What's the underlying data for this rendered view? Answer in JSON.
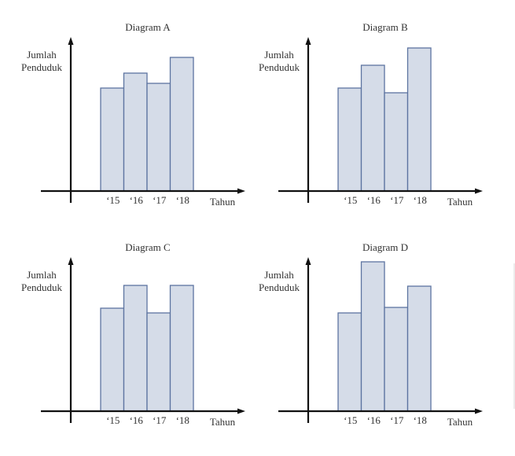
{
  "figure": {
    "description": "Four bar diagrams of population per year"
  },
  "chart_data": [
    {
      "type": "bar",
      "title": "Diagram A",
      "ylabel": [
        "Jumlah",
        "Penduduk"
      ],
      "xlabel": "Tahun",
      "categories": [
        "‘15",
        "‘16",
        "‘17",
        "‘18"
      ],
      "values": [
        131,
        150,
        137,
        170
      ],
      "units": "relative height (no scale shown)",
      "ylim": [
        0,
        195
      ],
      "grid": false,
      "legend": "none"
    },
    {
      "type": "bar",
      "title": "Diagram B",
      "ylabel": [
        "Jumlah",
        "Penduduk"
      ],
      "xlabel": "Tahun",
      "categories": [
        "‘15",
        "‘16",
        "‘17",
        "‘18"
      ],
      "values": [
        131,
        160,
        125,
        182
      ],
      "units": "relative height (no scale shown)",
      "ylim": [
        0,
        195
      ],
      "grid": false,
      "legend": "none"
    },
    {
      "type": "bar",
      "title": "Diagram C",
      "ylabel": [
        "Jumlah",
        "Penduduk"
      ],
      "xlabel": "Tahun",
      "categories": [
        "‘15",
        "‘16",
        "‘17",
        "‘18"
      ],
      "values": [
        131,
        160,
        125,
        160
      ],
      "units": "relative height (no scale shown)",
      "ylim": [
        0,
        195
      ],
      "grid": false,
      "legend": "none"
    },
    {
      "type": "bar",
      "title": "Diagram D",
      "ylabel": [
        "Jumlah",
        "Penduduk"
      ],
      "xlabel": "Tahun",
      "categories": [
        "‘15",
        "‘16",
        "‘17",
        "‘18"
      ],
      "values": [
        125,
        190,
        132,
        159
      ],
      "units": "relative height (no scale shown)",
      "ylim": [
        0,
        195
      ],
      "grid": false,
      "legend": "none"
    }
  ],
  "colors": {
    "bar_fill": "#d5dce8",
    "bar_stroke": "#5d74a0",
    "axis": "#111111"
  }
}
